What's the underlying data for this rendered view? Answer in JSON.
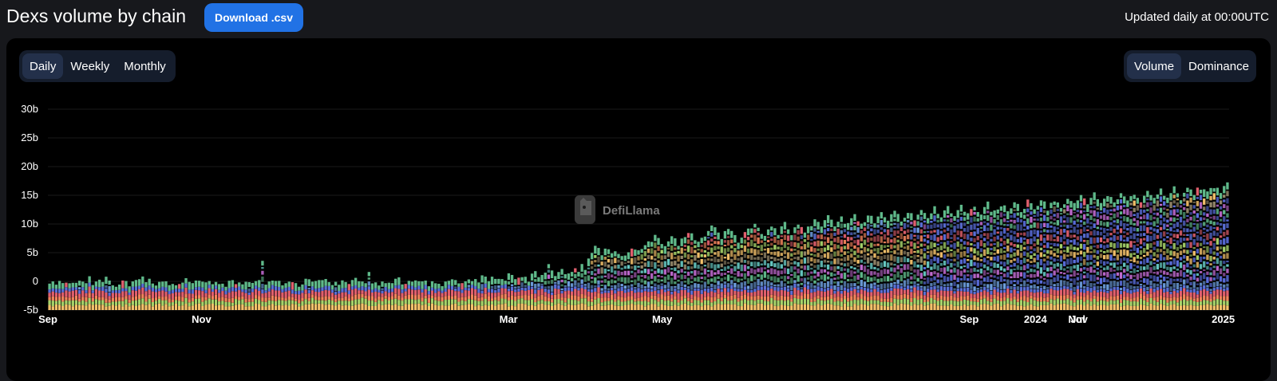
{
  "header": {
    "title": "Dexs volume by chain",
    "download_label": "Download .csv",
    "updated_text": "Updated daily at 00:00UTC"
  },
  "period_toggle": {
    "options": [
      "Daily",
      "Weekly",
      "Monthly"
    ],
    "selected": "Daily"
  },
  "mode_toggle": {
    "options": [
      "Volume",
      "Dominance"
    ],
    "selected": "Volume"
  },
  "watermark": {
    "text": "DefiLlama",
    "icon": "llama-logo-icon"
  },
  "chart_data": {
    "type": "bar",
    "stacked": true,
    "title": "",
    "xlabel": "",
    "ylabel": "",
    "y_ticks": [
      "30b",
      "25b",
      "20b",
      "15b",
      "10b",
      "5b",
      "0",
      "-5b"
    ],
    "y_tick_values": [
      30,
      25,
      20,
      15,
      10,
      5,
      0,
      -5
    ],
    "ylim": [
      -5,
      30
    ],
    "x_ticks": [
      "Sep",
      "Nov",
      "Mar",
      "May",
      "Sep",
      "2024",
      "Nov",
      "2025"
    ],
    "x_tick_overlap_label": "Jul",
    "x_tick_fractions": [
      0.0,
      0.13,
      0.39,
      0.52,
      0.78,
      0.836,
      0.872,
      0.995
    ],
    "grid": true,
    "legend": "none",
    "series_colors": [
      "#f5c26b",
      "#a6d36a",
      "#f2845c",
      "#e05f6d",
      "#5a6fd6",
      "#6ea0e0",
      "#5fb98a",
      "#c06ad0",
      "#66c9c3",
      "#9a8c6e"
    ],
    "highlight_series": [
      {
        "name": "",
        "color": "#5fb98a"
      },
      {
        "name": "",
        "color": "#5b6fe0"
      },
      {
        "name": "",
        "color": "#e05f6d"
      }
    ],
    "approx_total_volume_b": [
      4.2,
      4.5,
      4.0,
      3.8,
      4.6,
      5.1,
      3.9,
      4.4,
      4.8,
      5.5,
      4.1,
      3.7,
      4.3,
      4.9,
      5.2,
      4.0,
      4.6,
      5.8,
      6.2,
      4.5,
      4.2,
      4.8,
      5.0,
      4.4,
      3.9,
      4.1,
      5.3,
      4.7,
      4.2,
      4.5,
      5.0,
      4.8,
      4.3,
      4.0,
      4.6,
      5.1,
      4.9,
      4.4,
      4.2,
      4.7,
      5.4,
      6.0,
      4.8,
      4.3,
      4.1,
      4.5,
      5.2,
      4.6,
      4.0,
      3.8,
      4.3,
      4.9,
      5.6,
      4.4,
      4.1,
      4.7,
      5.0,
      4.5,
      4.2,
      4.8,
      5.3,
      4.6,
      4.3,
      4.9,
      9.5,
      5.1,
      4.4,
      4.2,
      4.7,
      5.0,
      4.5,
      4.1,
      4.6,
      5.2,
      4.8,
      4.3,
      4.0,
      4.5,
      5.4,
      4.9,
      4.2,
      4.6,
      5.1,
      4.7,
      4.4,
      4.8,
      5.5,
      4.9,
      4.3,
      4.6,
      5.2,
      4.8,
      4.5,
      4.2,
      4.7,
      5.0,
      7.5,
      4.4,
      4.1,
      4.6,
      5.3,
      4.8,
      4.5,
      4.9,
      5.6,
      5.0,
      4.6,
      4.3,
      4.8,
      5.2,
      4.7,
      4.4,
      4.9,
      5.4,
      5.0,
      4.6,
      4.3,
      4.8,
      5.1,
      4.7,
      4.5,
      5.0,
      5.6,
      5.2,
      4.8,
      5.3,
      5.9,
      5.4,
      5.0,
      5.5,
      6.1,
      5.6,
      5.2,
      5.7,
      6.3,
      5.8,
      5.4,
      5.9,
      6.5,
      6.0,
      5.6,
      6.1,
      6.8,
      6.3,
      5.9,
      6.4,
      7.0,
      6.5,
      6.1,
      6.6,
      9.0,
      6.8,
      6.4,
      6.9,
      7.4,
      7.0,
      6.6,
      7.1,
      7.8,
      7.3,
      8.2,
      7.5,
      8.9,
      10.1,
      11.3,
      11.0,
      10.5,
      10.8,
      11.2,
      10.9,
      10.6,
      10.3,
      10.0,
      9.8,
      10.2,
      10.6,
      10.9,
      11.2,
      11.5,
      11.8,
      12.2,
      12.8,
      13.4,
      12.6,
      12.0,
      11.5,
      12.3,
      13.0,
      12.4,
      11.8,
      12.5,
      13.2,
      14.0,
      13.5,
      12.8,
      12.2,
      12.9,
      13.5,
      14.2,
      15.0,
      14.3,
      13.6,
      12.9,
      13.7,
      14.5,
      13.8,
      13.0,
      12.4,
      13.1,
      13.8,
      14.4,
      15.1,
      15.8,
      15.0,
      14.2,
      13.5,
      14.3,
      15.1,
      14.4,
      13.7,
      14.5,
      15.3,
      14.6,
      13.9,
      14.7,
      15.5,
      14.8,
      14.0,
      14.8,
      15.6,
      16.3,
      15.5,
      14.8,
      15.6,
      16.4,
      15.7,
      15.0,
      15.8,
      16.6,
      15.9,
      15.2,
      16.0,
      16.8,
      16.1,
      15.4,
      16.2,
      17.0,
      16.3,
      15.6,
      16.4,
      17.2,
      16.5,
      15.8,
      16.6,
      17.4,
      16.7,
      16.0,
      16.8,
      17.5,
      16.9,
      16.2,
      17.0,
      17.8,
      17.1,
      16.4,
      17.2,
      18.0,
      17.3,
      16.6,
      17.4,
      18.2,
      17.5,
      16.8,
      17.6,
      18.4,
      17.7,
      17.0,
      17.8,
      18.6,
      17.9,
      17.2,
      18.0,
      18.8,
      18.1,
      17.4,
      18.2,
      19.0,
      18.3,
      17.6,
      18.4,
      19.2,
      18.5,
      17.8,
      18.6,
      19.4,
      18.7,
      18.0,
      18.8,
      19.6,
      18.9,
      18.2,
      19.0,
      19.8,
      19.1,
      18.4,
      19.2,
      20.0,
      19.3,
      18.6,
      19.4,
      20.2,
      19.5,
      18.8,
      19.6,
      20.4,
      19.7,
      19.0,
      19.8,
      20.6,
      19.9,
      19.2,
      20.0,
      20.8,
      20.1,
      19.4,
      20.2,
      21.0,
      20.3,
      19.6,
      20.4,
      21.2,
      20.5,
      19.8,
      20.6,
      21.4,
      20.7,
      20.0,
      20.8,
      21.6,
      20.9,
      20.2,
      21.0,
      21.8,
      21.1,
      20.4,
      21.2,
      22.0,
      21.3,
      20.6,
      21.4,
      22.2,
      21.5,
      20.8,
      21.6,
      22.4
    ]
  }
}
